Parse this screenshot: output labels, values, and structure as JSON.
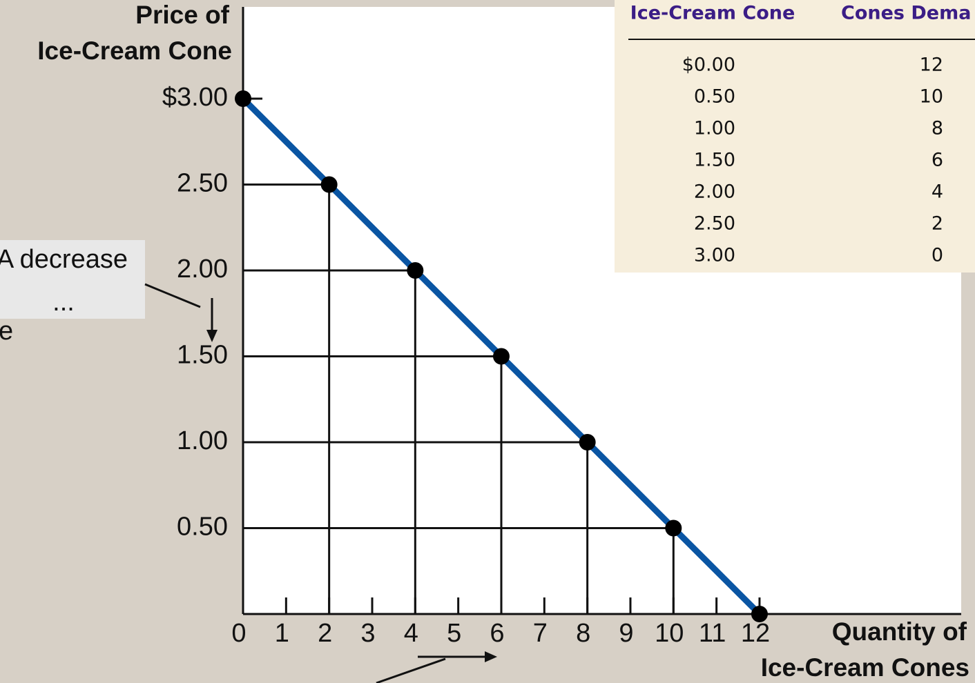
{
  "chart_data": {
    "type": "line",
    "ylabel": [
      "Price of",
      "Ice-Cream Cone"
    ],
    "xlabel": [
      "Quantity of",
      "Ice-Cream Cones"
    ],
    "x": [
      0,
      2,
      4,
      6,
      8,
      10,
      12
    ],
    "series": [
      {
        "color": "#0a55a3",
        "values": [
          3,
          2.5,
          2,
          1.5,
          1,
          0.5,
          0
        ]
      }
    ],
    "xlim": [
      0,
      16.5
    ],
    "ylim": [
      0,
      3.5
    ],
    "xticks": [
      0,
      1,
      2,
      3,
      4,
      5,
      6,
      7,
      8,
      9,
      10,
      11,
      12
    ],
    "yticks": [
      {
        "value": 0.5,
        "label": "0.50"
      },
      {
        "value": 1,
        "label": "1.00"
      },
      {
        "value": 1.5,
        "label": "1.50"
      },
      {
        "value": 2,
        "label": "2.00"
      },
      {
        "value": 2.5,
        "label": "2.50"
      },
      {
        "value": 3,
        "label": "$3.00"
      }
    ],
    "annotations": [
      "A decrease",
      "...",
      "e"
    ]
  },
  "table": {
    "headers": [
      "Ice-Cream Cone",
      "Cones Dema"
    ],
    "rows": [
      [
        "$0.00",
        "12"
      ],
      [
        "0.50",
        "10"
      ],
      [
        "1.00",
        "8"
      ],
      [
        "1.50",
        "6"
      ],
      [
        "2.00",
        "4"
      ],
      [
        "2.50",
        "2"
      ],
      [
        "3.00",
        "0"
      ]
    ]
  }
}
